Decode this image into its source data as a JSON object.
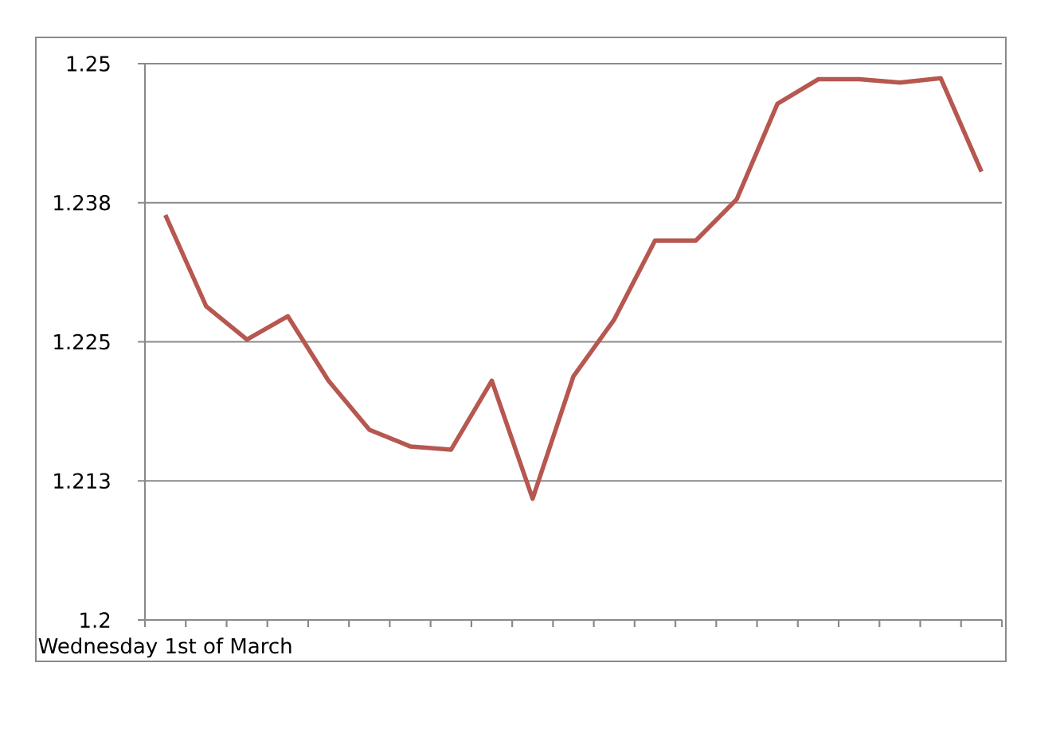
{
  "chart_data": {
    "type": "line",
    "categories": [
      "Wednesday 1st of March",
      null,
      null,
      null,
      null,
      null,
      null,
      null,
      null,
      null,
      null,
      null,
      null,
      null,
      null,
      null,
      null,
      null,
      null,
      null,
      null
    ],
    "series": [
      {
        "color": "#b65750",
        "values": [
          1.2364,
          1.2282,
          1.2252,
          1.2273,
          1.2215,
          1.2171,
          1.2156,
          1.2153,
          1.2215,
          1.2109,
          1.2219,
          1.227,
          1.2341,
          1.2341,
          1.2378,
          1.2464,
          1.2486,
          1.2486,
          1.2483,
          1.2487,
          1.2403
        ]
      }
    ],
    "ylim": [
      1.2,
      1.25
    ],
    "yticks": [
      1.2,
      {
        "value": 1.2125,
        "label": "1.213"
      },
      1.225,
      {
        "value": 1.2375,
        "label": "1.238"
      },
      1.25
    ],
    "grid": "y"
  }
}
